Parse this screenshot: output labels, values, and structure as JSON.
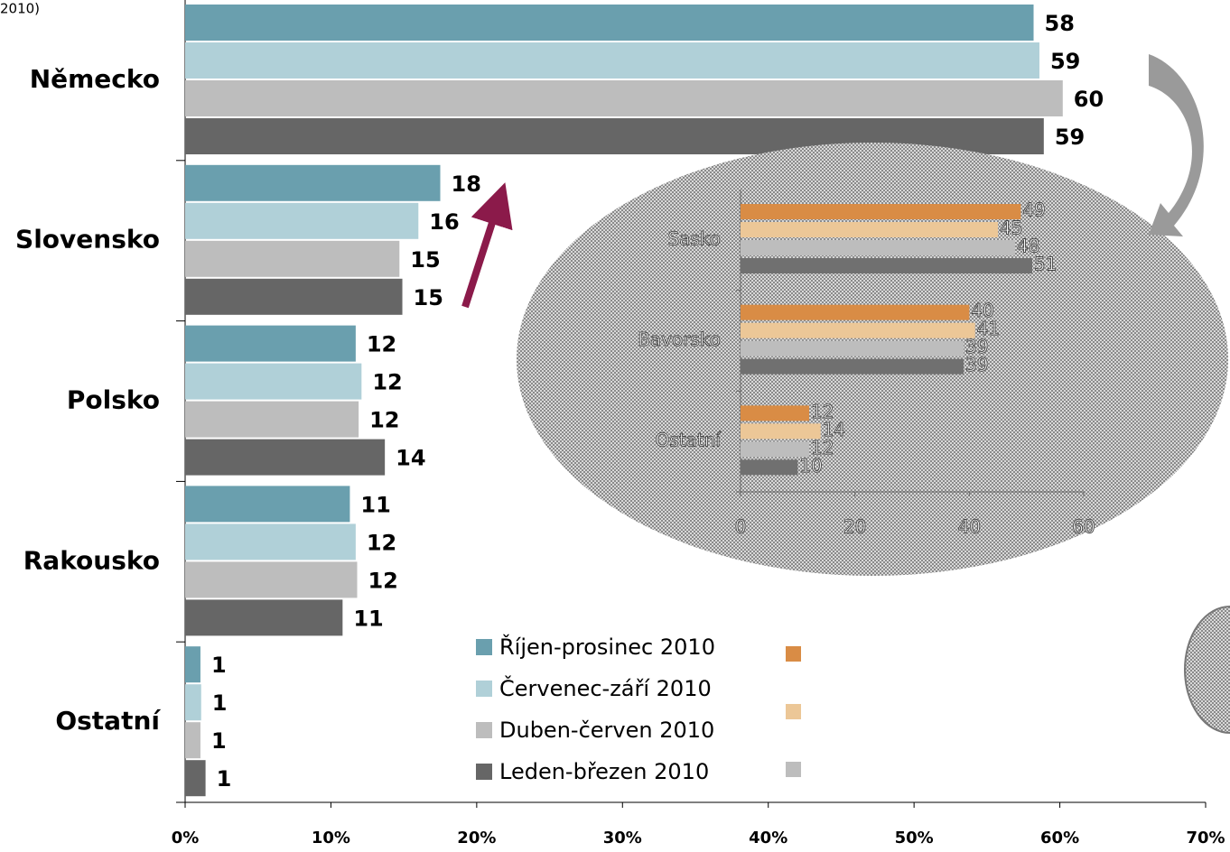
{
  "chart_data": [
    {
      "type": "hbar",
      "title": "2010)",
      "categories": [
        "Německo",
        "Slovensko",
        "Polsko",
        "Rakousko",
        "Ostatní"
      ],
      "series": [
        {
          "name": "Říjen-prosinec 2010",
          "color": "#6a9fae",
          "values": [
            58.2,
            17.5,
            11.7,
            11.3,
            1.05
          ],
          "value_labels": [
            "58",
            "18",
            "12",
            "11",
            "1"
          ]
        },
        {
          "name": "Červenec-září 2010",
          "color": "#b0d0d8",
          "values": [
            58.6,
            16.0,
            12.1,
            11.7,
            1.1
          ],
          "value_labels": [
            "59",
            "16",
            "12",
            "12",
            "1"
          ]
        },
        {
          "name": "Duben-červen 2010",
          "color": "#bdbdbd",
          "values": [
            60.2,
            14.7,
            11.9,
            11.8,
            1.05
          ],
          "value_labels": [
            "60",
            "15",
            "12",
            "12",
            "1"
          ]
        },
        {
          "name": "Leden-březen 2010",
          "color": "#666666",
          "values": [
            58.9,
            14.9,
            13.7,
            10.8,
            1.4
          ],
          "value_labels": [
            "59",
            "15",
            "14",
            "11",
            "1"
          ]
        }
      ],
      "xlim": [
        0,
        70
      ],
      "xticks": [
        {
          "value": 0,
          "label": "0%"
        },
        {
          "value": 10,
          "label": "10%"
        },
        {
          "value": 20,
          "label": "20%"
        },
        {
          "value": 30,
          "label": "30%"
        },
        {
          "value": 40,
          "label": "40%"
        },
        {
          "value": 50,
          "label": "50%"
        },
        {
          "value": 60,
          "label": "60%"
        },
        {
          "value": 70,
          "label": "70%"
        }
      ]
    },
    {
      "type": "hbar",
      "categories": [
        "Sasko",
        "Bavorsko",
        "Ostatní"
      ],
      "series": [
        {
          "color": "#d98c45",
          "values": [
            49,
            40,
            12
          ]
        },
        {
          "color": "#ecc797",
          "values": [
            45,
            41,
            14
          ]
        },
        {
          "color": "#bdbdbd",
          "values": [
            48,
            39,
            12
          ]
        },
        {
          "color": "#707070",
          "values": [
            51,
            39,
            10
          ]
        }
      ],
      "xlim": [
        0,
        60
      ],
      "xticks": [
        0,
        20,
        40,
        60
      ]
    }
  ]
}
